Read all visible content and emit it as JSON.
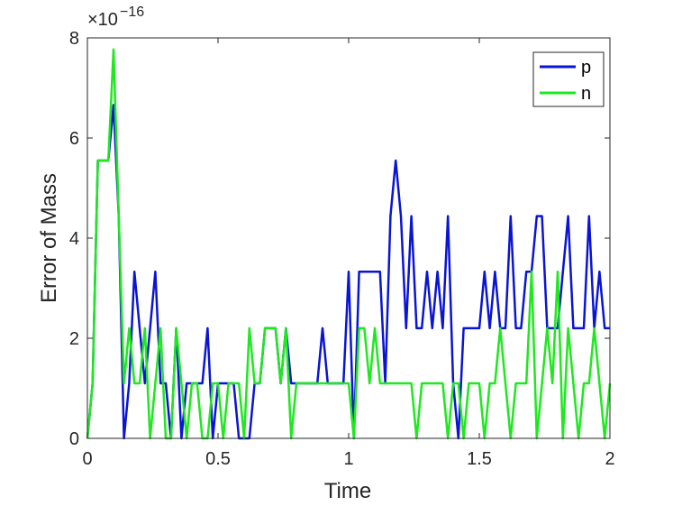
{
  "chart_data": {
    "type": "line",
    "title": "",
    "xlabel": "Time",
    "ylabel": "Error of Mass",
    "y_exponent_base": "×10",
    "y_exponent_power": "−16",
    "xlim": [
      0,
      2
    ],
    "ylim": [
      0,
      8
    ],
    "xticks": [
      0,
      0.5,
      1,
      1.5,
      2
    ],
    "xtick_labels": [
      "0",
      "0.5",
      "1",
      "1.5",
      "2"
    ],
    "yticks": [
      0,
      2,
      4,
      6,
      8
    ],
    "ytick_labels": [
      "0",
      "2",
      "4",
      "6",
      "8"
    ],
    "grid": false,
    "legend_position": "top-right",
    "colors": {
      "p": "#0a14d6",
      "n": "#1ee81e",
      "axis": "#262626"
    },
    "series": [
      {
        "name": "p",
        "color": "#0a14d6",
        "x": [
          0,
          0.02,
          0.04,
          0.06,
          0.08,
          0.1,
          0.12,
          0.14,
          0.16,
          0.18,
          0.2,
          0.22,
          0.24,
          0.26,
          0.28,
          0.3,
          0.32,
          0.34,
          0.36,
          0.38,
          0.4,
          0.42,
          0.44,
          0.46,
          0.48,
          0.5,
          0.52,
          0.54,
          0.56,
          0.58,
          0.6,
          0.62,
          0.64,
          0.66,
          0.68,
          0.7,
          0.72,
          0.74,
          0.76,
          0.78,
          0.8,
          0.82,
          0.84,
          0.86,
          0.88,
          0.9,
          0.92,
          0.94,
          0.96,
          0.98,
          1.0,
          1.02,
          1.04,
          1.06,
          1.08,
          1.1,
          1.12,
          1.14,
          1.16,
          1.18,
          1.2,
          1.22,
          1.24,
          1.26,
          1.28,
          1.3,
          1.32,
          1.34,
          1.36,
          1.38,
          1.4,
          1.42,
          1.44,
          1.46,
          1.48,
          1.5,
          1.52,
          1.54,
          1.56,
          1.58,
          1.6,
          1.62,
          1.64,
          1.66,
          1.68,
          1.7,
          1.72,
          1.74,
          1.76,
          1.78,
          1.8,
          1.82,
          1.84,
          1.86,
          1.88,
          1.9,
          1.92,
          1.94,
          1.96,
          1.98,
          2.0
        ],
        "values": [
          0,
          1.1,
          5.55,
          5.55,
          5.55,
          6.66,
          4.44,
          0,
          1.1,
          3.33,
          2.2,
          1.1,
          2.2,
          3.33,
          1.1,
          1.1,
          0,
          2.2,
          0,
          1.1,
          1.1,
          1.1,
          1.1,
          2.2,
          0,
          1.1,
          1.1,
          1.1,
          1.1,
          0,
          0,
          0,
          1.1,
          1.1,
          2.2,
          2.2,
          2.2,
          1.1,
          2.2,
          1.1,
          1.1,
          1.1,
          1.1,
          1.1,
          1.1,
          2.2,
          1.1,
          1.1,
          1.1,
          1.1,
          3.33,
          0,
          3.33,
          3.33,
          3.33,
          3.33,
          3.33,
          1.1,
          4.44,
          5.55,
          4.44,
          2.2,
          4.44,
          2.2,
          2.2,
          3.33,
          2.2,
          3.33,
          2.2,
          4.44,
          1.1,
          0,
          2.2,
          2.2,
          2.2,
          2.2,
          3.33,
          2.2,
          3.33,
          2.2,
          2.2,
          4.44,
          2.2,
          2.2,
          3.33,
          3.33,
          4.44,
          4.44,
          2.2,
          2.2,
          2.2,
          3.33,
          4.44,
          2.2,
          2.2,
          2.2,
          4.44,
          2.2,
          3.33,
          2.2,
          2.2
        ]
      },
      {
        "name": "n",
        "color": "#1ee81e",
        "x": [
          0,
          0.02,
          0.04,
          0.06,
          0.08,
          0.1,
          0.12,
          0.14,
          0.16,
          0.18,
          0.2,
          0.22,
          0.24,
          0.26,
          0.28,
          0.3,
          0.32,
          0.34,
          0.36,
          0.38,
          0.4,
          0.42,
          0.44,
          0.46,
          0.48,
          0.5,
          0.52,
          0.54,
          0.56,
          0.58,
          0.6,
          0.62,
          0.64,
          0.66,
          0.68,
          0.7,
          0.72,
          0.74,
          0.76,
          0.78,
          0.8,
          0.82,
          0.84,
          0.86,
          0.88,
          0.9,
          0.92,
          0.94,
          0.96,
          0.98,
          1.0,
          1.02,
          1.04,
          1.06,
          1.08,
          1.1,
          1.12,
          1.14,
          1.16,
          1.18,
          1.2,
          1.22,
          1.24,
          1.26,
          1.28,
          1.3,
          1.32,
          1.34,
          1.36,
          1.38,
          1.4,
          1.42,
          1.44,
          1.46,
          1.48,
          1.5,
          1.52,
          1.54,
          1.56,
          1.58,
          1.6,
          1.62,
          1.64,
          1.66,
          1.68,
          1.7,
          1.72,
          1.74,
          1.76,
          1.78,
          1.8,
          1.82,
          1.84,
          1.86,
          1.88,
          1.9,
          1.92,
          1.94,
          1.96,
          1.98,
          2.0
        ],
        "values": [
          0,
          1.1,
          5.55,
          5.55,
          5.55,
          7.77,
          4.44,
          1.1,
          2.2,
          1.1,
          1.1,
          2.2,
          0,
          1.1,
          2.2,
          0,
          0,
          2.2,
          1.1,
          0,
          1.1,
          1.1,
          0,
          0,
          1.1,
          1.1,
          0,
          1.1,
          1.1,
          1.1,
          0,
          2.2,
          1.1,
          1.1,
          2.2,
          2.2,
          2.2,
          1.1,
          2.2,
          0,
          1.1,
          1.1,
          1.1,
          1.1,
          1.1,
          1.1,
          1.1,
          1.1,
          1.1,
          1.1,
          1.1,
          0,
          2.2,
          2.2,
          1.1,
          2.2,
          1.1,
          1.1,
          1.1,
          1.1,
          1.1,
          1.1,
          1.1,
          0,
          1.1,
          1.1,
          1.1,
          1.1,
          1.1,
          0,
          1.1,
          1.1,
          0,
          1.1,
          1.1,
          1.1,
          0,
          1.1,
          1.1,
          2.2,
          1.1,
          0,
          1.1,
          1.1,
          1.1,
          3.33,
          0,
          1.1,
          2.2,
          1.1,
          3.33,
          0,
          2.2,
          1.1,
          0,
          1.1,
          1.1,
          2.2,
          1.1,
          0,
          1.1
        ]
      }
    ]
  }
}
